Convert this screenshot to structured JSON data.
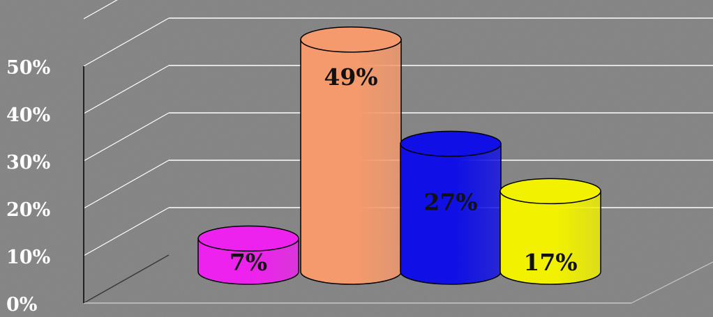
{
  "chart_data": {
    "type": "bar",
    "style": "3d-cylinder",
    "categories": [
      "",
      "",
      "",
      ""
    ],
    "values": [
      7,
      49,
      27,
      17
    ],
    "data_labels": [
      "7%",
      "49%",
      "27%",
      "17%"
    ],
    "colors": [
      "#ee22ee",
      "#f59a6c",
      "#1010e6",
      "#f2f200"
    ],
    "y_ticks": [
      "0%",
      "10%",
      "20%",
      "30%",
      "40%",
      "50%"
    ],
    "ylim": [
      0,
      60
    ],
    "grid": true,
    "legend": "none",
    "title": "",
    "xlabel": "",
    "ylabel": ""
  }
}
